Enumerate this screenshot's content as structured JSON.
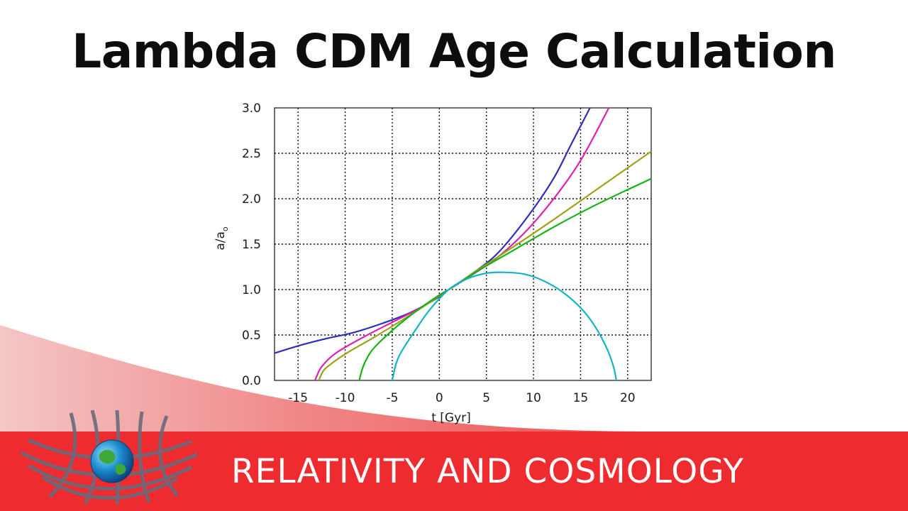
{
  "title": "Lambda CDM Age Calculation",
  "banner": "RELATIVITY AND COSMOLOGY",
  "colors": {
    "banner_red": "#ee2b2e",
    "grid": "#111111",
    "series": [
      "#2e2eb8",
      "#e020b0",
      "#a0a014",
      "#14b414",
      "#14b4c8"
    ]
  },
  "logo": {
    "icons": [
      "spacetime-grid-icon",
      "earth-globe-icon"
    ]
  },
  "chart_data": {
    "type": "line",
    "title": "",
    "xlabel": "t [Gyr]",
    "ylabel": "a/a",
    "ylabel_subscript": "o",
    "xlim": [
      -17.5,
      22.5
    ],
    "ylim": [
      0,
      3
    ],
    "xticks": [
      -15,
      -10,
      -5,
      0,
      5,
      10,
      15,
      20
    ],
    "yticks": [
      0.0,
      0.5,
      1.0,
      1.5,
      2.0,
      2.5,
      3.0
    ],
    "xtick_labels": [
      "-15",
      "-10",
      "-5",
      "0",
      "5",
      "10",
      "15",
      "20"
    ],
    "ytick_labels": [
      "0.0",
      "0.5",
      "1.0",
      "1.5",
      "2.0",
      "2.5",
      "3.0"
    ],
    "grid": true,
    "grid_style": "dotted",
    "legend": "none",
    "series": [
      {
        "color": "#2e2eb8",
        "points": [
          [
            -17.5,
            0.3
          ],
          [
            -15,
            0.38
          ],
          [
            -12,
            0.46
          ],
          [
            -9,
            0.53
          ],
          [
            -6,
            0.63
          ],
          [
            -3,
            0.75
          ],
          [
            0,
            0.92
          ],
          [
            1,
            1.0
          ],
          [
            3,
            1.14
          ],
          [
            6,
            1.38
          ],
          [
            9,
            1.75
          ],
          [
            12,
            2.2
          ],
          [
            14,
            2.6
          ],
          [
            16,
            3.0
          ]
        ]
      },
      {
        "color": "#e020b0",
        "points": [
          [
            -13.2,
            0.0
          ],
          [
            -13,
            0.05
          ],
          [
            -12.5,
            0.15
          ],
          [
            -11,
            0.3
          ],
          [
            -8,
            0.48
          ],
          [
            -5,
            0.64
          ],
          [
            -2,
            0.8
          ],
          [
            0,
            0.94
          ],
          [
            1,
            1.0
          ],
          [
            3,
            1.13
          ],
          [
            6,
            1.34
          ],
          [
            9,
            1.62
          ],
          [
            12,
            1.98
          ],
          [
            15,
            2.42
          ],
          [
            18,
            3.0
          ]
        ]
      },
      {
        "color": "#a0a014",
        "points": [
          [
            -12.8,
            0.0
          ],
          [
            -12.5,
            0.07
          ],
          [
            -12,
            0.14
          ],
          [
            -10,
            0.29
          ],
          [
            -7,
            0.47
          ],
          [
            -4,
            0.66
          ],
          [
            -1,
            0.86
          ],
          [
            1,
            1.0
          ],
          [
            4,
            1.21
          ],
          [
            8,
            1.48
          ],
          [
            12,
            1.76
          ],
          [
            16,
            2.05
          ],
          [
            20,
            2.34
          ],
          [
            22.5,
            2.52
          ]
        ]
      },
      {
        "color": "#14b414",
        "points": [
          [
            -8.5,
            0.0
          ],
          [
            -8.2,
            0.12
          ],
          [
            -7.8,
            0.22
          ],
          [
            -7,
            0.35
          ],
          [
            -5,
            0.55
          ],
          [
            -3,
            0.72
          ],
          [
            -1,
            0.87
          ],
          [
            1,
            1.0
          ],
          [
            4,
            1.2
          ],
          [
            8,
            1.44
          ],
          [
            12,
            1.68
          ],
          [
            16,
            1.9
          ],
          [
            20,
            2.1
          ],
          [
            22.5,
            2.22
          ]
        ]
      },
      {
        "color": "#14b4c8",
        "points": [
          [
            -5,
            0.0
          ],
          [
            -4.6,
            0.18
          ],
          [
            -4,
            0.32
          ],
          [
            -2.5,
            0.56
          ],
          [
            -1,
            0.78
          ],
          [
            1,
            1.0
          ],
          [
            3,
            1.12
          ],
          [
            5,
            1.18
          ],
          [
            6.8,
            1.19
          ],
          [
            9,
            1.17
          ],
          [
            11,
            1.1
          ],
          [
            13,
            0.98
          ],
          [
            15,
            0.8
          ],
          [
            16.5,
            0.6
          ],
          [
            17.8,
            0.35
          ],
          [
            18.5,
            0.15
          ],
          [
            18.8,
            0.0
          ]
        ]
      }
    ]
  }
}
